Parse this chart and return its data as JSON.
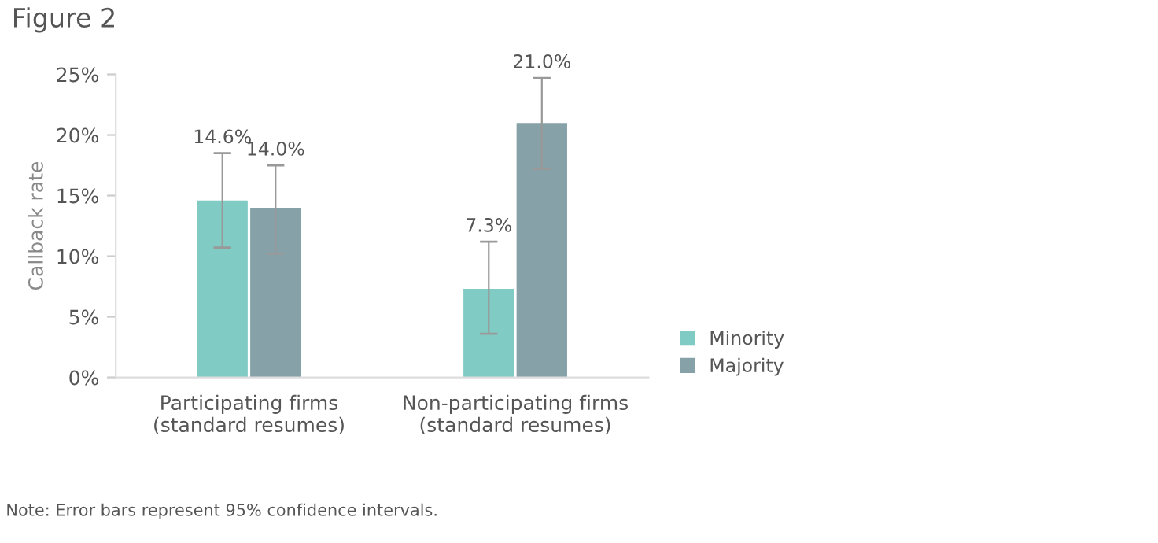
{
  "chart_data": {
    "type": "bar",
    "title": "Figure 2",
    "ylabel": "Callback rate",
    "categories": [
      "Participating firms\n(standard resumes)",
      "Non-participating firms\n(standard resumes)"
    ],
    "series": [
      {
        "name": "Minority",
        "color": "#80cbc4",
        "values": [
          14.6,
          7.3
        ],
        "errors": [
          [
            10.7,
            18.5
          ],
          [
            3.6,
            11.2
          ]
        ],
        "value_labels": [
          "14.6%",
          "7.3%"
        ]
      },
      {
        "name": "Majority",
        "color": "#86a2a8",
        "values": [
          14.0,
          21.0
        ],
        "errors": [
          [
            10.2,
            17.5
          ],
          [
            17.2,
            24.7
          ]
        ],
        "value_labels": [
          "14.0%",
          "21.0%"
        ]
      }
    ],
    "ylim": [
      0,
      25
    ],
    "yticks": [
      {
        "value": 0,
        "label": "0%"
      },
      {
        "value": 5,
        "label": "5%"
      },
      {
        "value": 10,
        "label": "10%"
      },
      {
        "value": 15,
        "label": "15%"
      },
      {
        "value": 20,
        "label": "20%"
      },
      {
        "value": 25,
        "label": "25%"
      }
    ],
    "grid": false,
    "legend": "bottom right",
    "annotations": [
      "Note: Error bars represent 95% confidence intervals."
    ]
  }
}
